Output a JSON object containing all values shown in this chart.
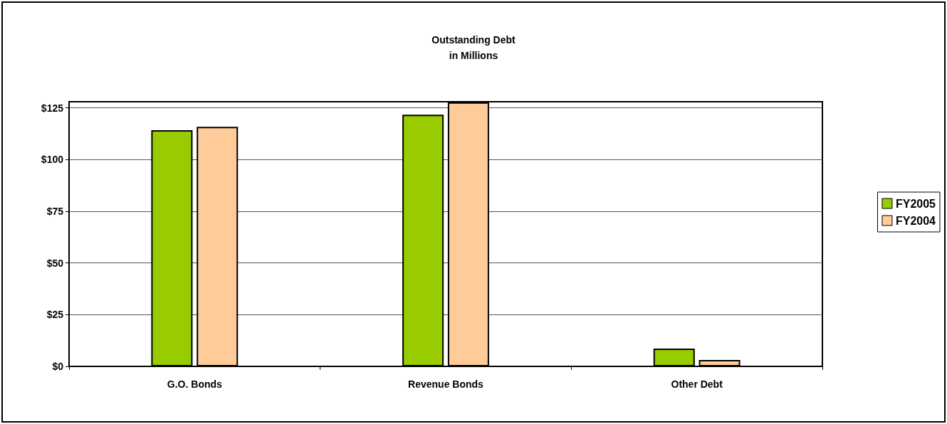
{
  "chart_data": {
    "type": "bar",
    "title": "Outstanding Debt\nin Millions",
    "categories": [
      "G.O. Bonds",
      "Revenue Bonds",
      "Other Debt"
    ],
    "series": [
      {
        "name": "FY2005",
        "color": "#99cc00",
        "values": [
          114.2,
          121.7,
          8.6
        ]
      },
      {
        "name": "FY2004",
        "color": "#ffcc99",
        "values": [
          115.9,
          127.7,
          3.1
        ]
      }
    ],
    "ylim": [
      0,
      128
    ],
    "yticks": [
      {
        "value": 0,
        "label": "$0"
      },
      {
        "value": 25,
        "label": "$25"
      },
      {
        "value": 50,
        "label": "$50"
      },
      {
        "value": 75,
        "label": "$75"
      },
      {
        "value": 100,
        "label": "$100"
      },
      {
        "value": 125,
        "label": "$125"
      }
    ],
    "grid": "y",
    "legend": "right"
  }
}
